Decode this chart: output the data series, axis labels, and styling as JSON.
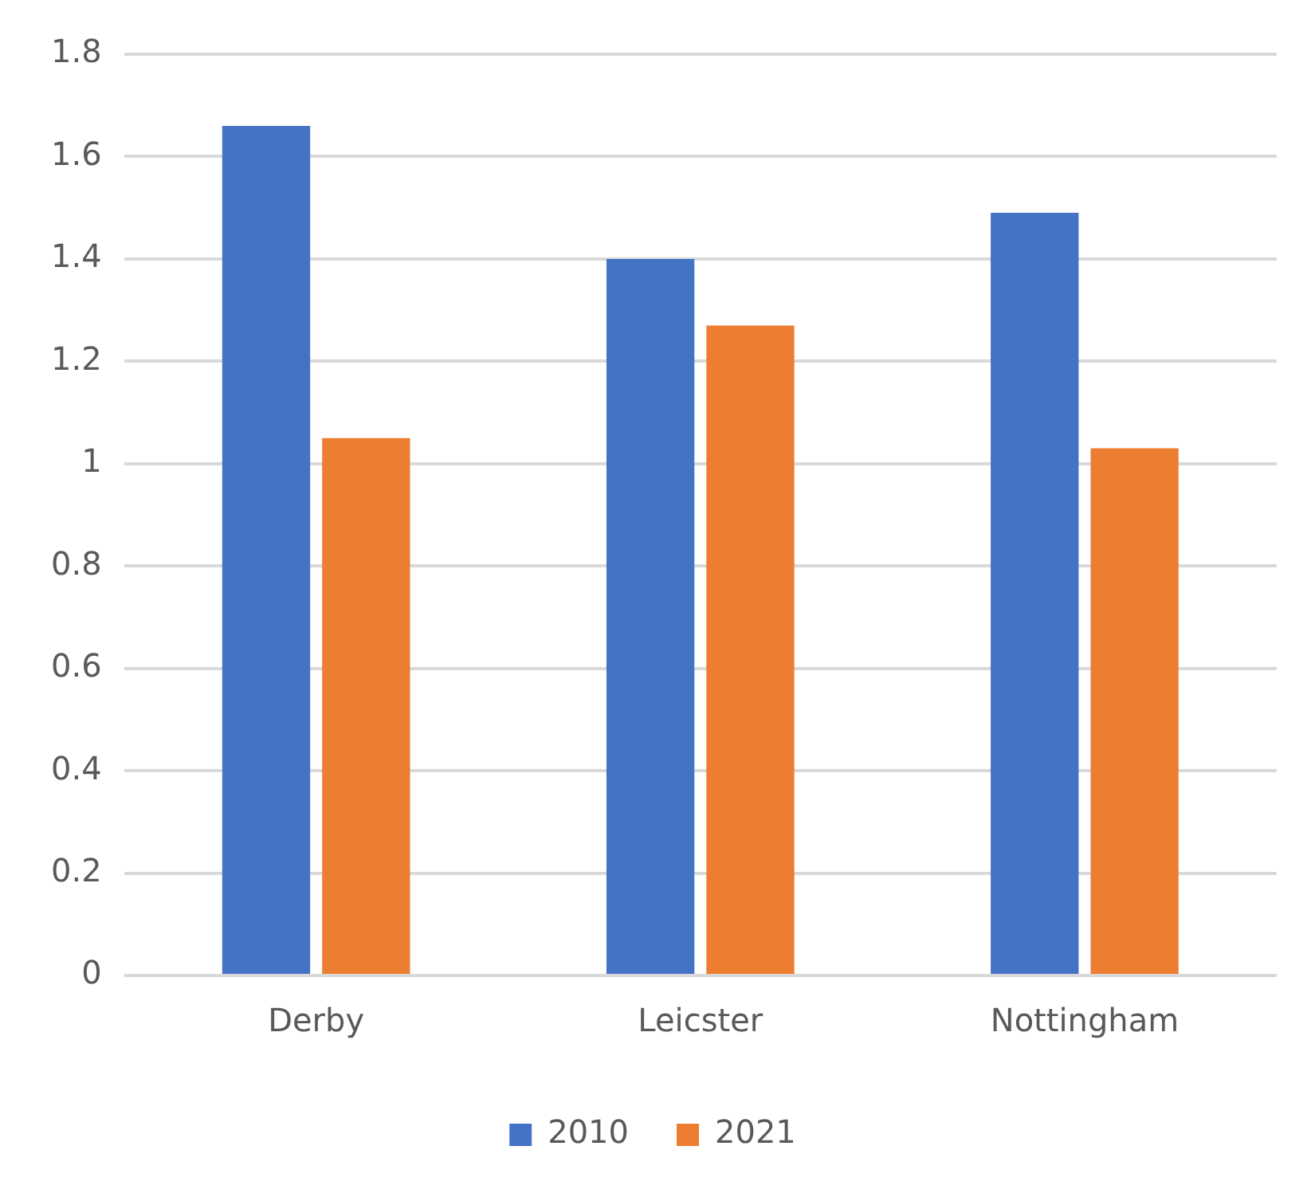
{
  "chart_data": {
    "type": "bar",
    "categories": [
      "Derby",
      "Leicster",
      "Nottingham"
    ],
    "series": [
      {
        "name": "2010",
        "color": "#4472c4",
        "values": [
          1.66,
          1.4,
          1.49
        ]
      },
      {
        "name": "2021",
        "color": "#ed7d31",
        "values": [
          1.05,
          1.27,
          1.03
        ]
      }
    ],
    "ylim": [
      0,
      1.8
    ],
    "yticks": [
      0,
      0.2,
      0.4,
      0.6,
      0.8,
      1,
      1.2,
      1.4,
      1.6,
      1.8
    ],
    "grid": "y",
    "legend": "bottom"
  }
}
